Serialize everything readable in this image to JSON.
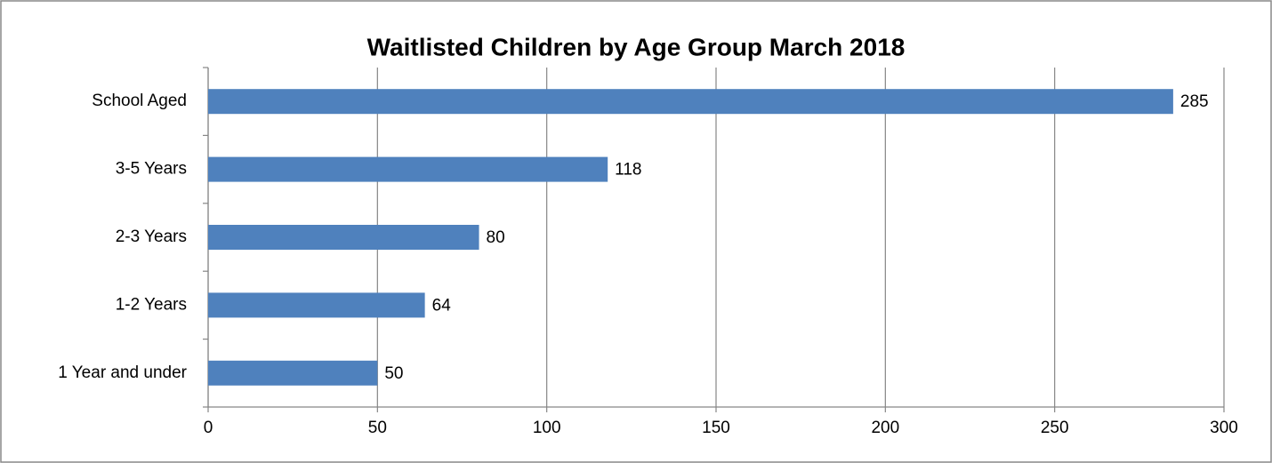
{
  "chart_data": {
    "type": "bar",
    "orientation": "horizontal",
    "title": "Waitlisted Children by Age Group  March 2018",
    "categories": [
      "1 Year and under",
      "1-2 Years",
      "2-3 Years",
      "3-5 Years",
      "School Aged"
    ],
    "values": [
      50,
      64,
      80,
      118,
      285
    ],
    "color": "#4f81bd",
    "xlim": [
      0,
      300
    ],
    "xticks": [
      0,
      50,
      100,
      150,
      200,
      250,
      300
    ],
    "grid": true
  }
}
